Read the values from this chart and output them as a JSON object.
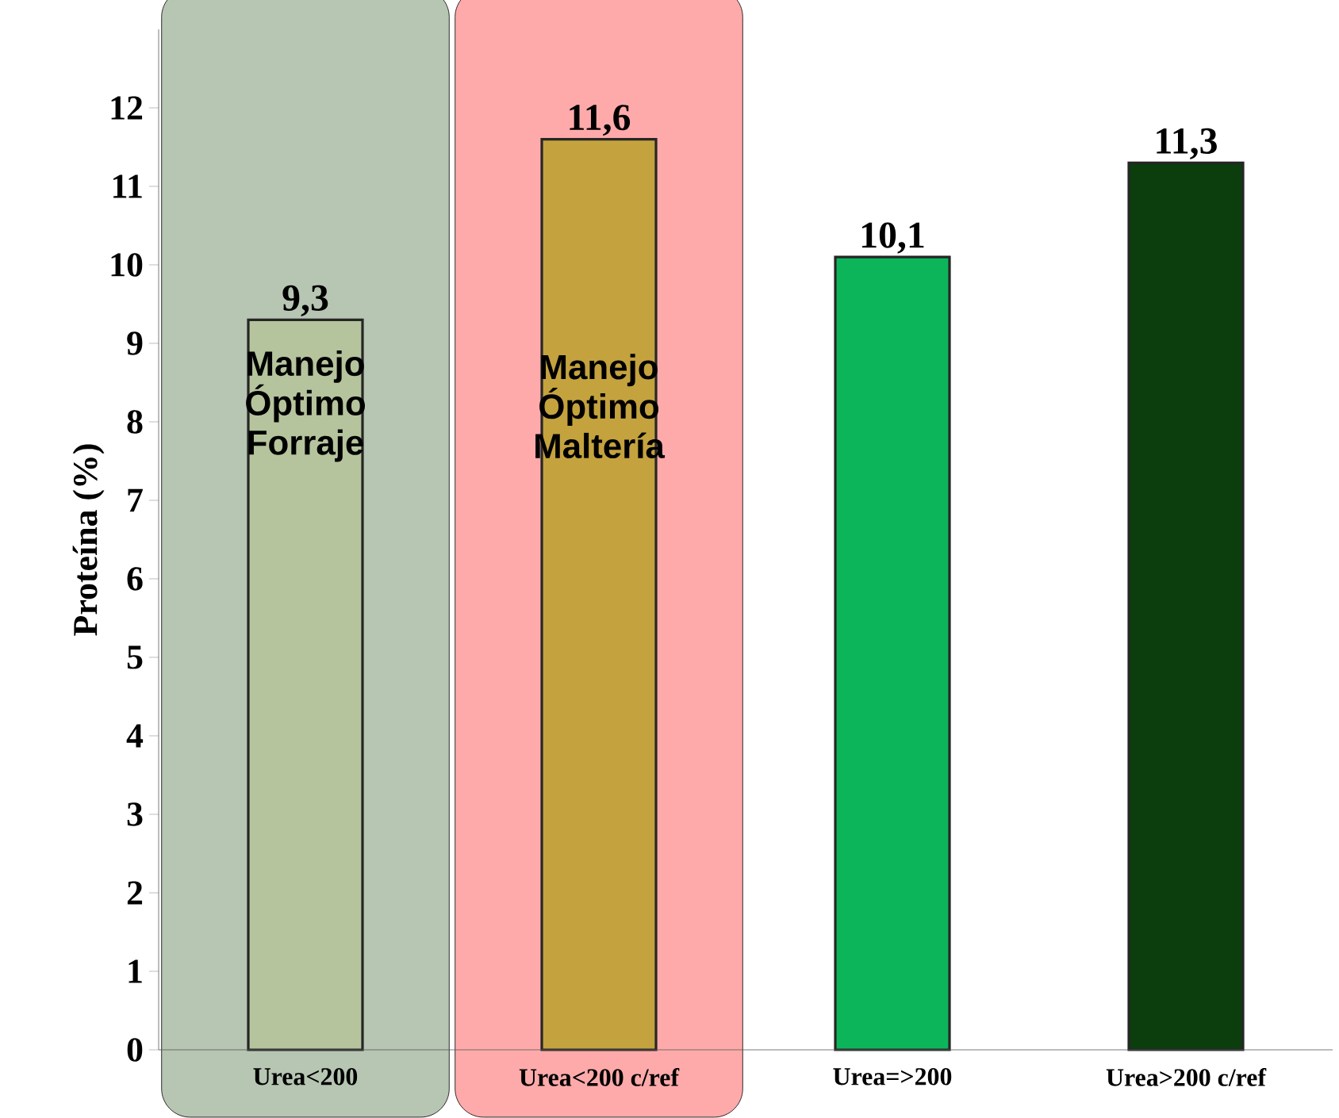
{
  "chart_data": {
    "type": "bar",
    "categories": [
      "Urea<200",
      "Urea<200 c/ref",
      "Urea=>200",
      "Urea>200 c/ref"
    ],
    "values": [
      9.3,
      11.6,
      10.1,
      11.3
    ],
    "value_labels": [
      "9,3",
      "11,6",
      "10,1",
      "11,3"
    ],
    "colors": [
      "#b5c49c",
      "#c4a23e",
      "#0db55a",
      "#0b3d0d"
    ],
    "ylabel": "Proteína (%)",
    "ylim": [
      0,
      13
    ],
    "yticks": [
      0,
      1,
      2,
      3,
      4,
      5,
      6,
      7,
      8,
      9,
      10,
      11,
      12
    ],
    "bands": [
      {
        "axis": "x",
        "from": "Urea<200",
        "to": "Urea<200",
        "label": "Manejo Óptimo Forraje",
        "color": "#b7c5b3"
      },
      {
        "axis": "x",
        "from": "Urea<200 c/ref",
        "to": "Urea<200 c/ref",
        "label": "Manejo Óptimo Maltería",
        "color": "#ffaaaa"
      }
    ]
  }
}
